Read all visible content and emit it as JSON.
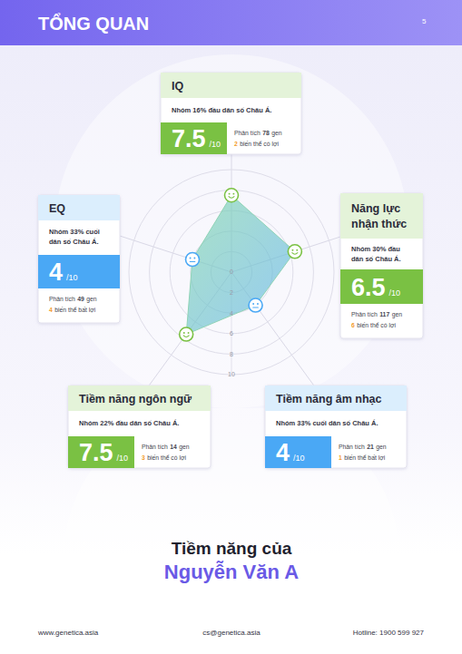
{
  "header": {
    "title": "TỔNG QUAN",
    "page": 5
  },
  "chart_data": {
    "type": "radar",
    "categories": [
      "IQ",
      "Năng lực nhận thức",
      "Tiềm năng âm nhạc",
      "Tiềm năng ngôn ngữ",
      "EQ"
    ],
    "values": [
      7.5,
      6.5,
      4,
      7.5,
      4
    ],
    "colors": [
      "#7ac143",
      "#7ac143",
      "#4aa8f5",
      "#7ac143",
      "#4aa8f5"
    ],
    "ylim": [
      0,
      10
    ],
    "yticks": [
      0,
      2,
      4,
      6,
      8,
      10
    ],
    "grid": true
  },
  "cards": [
    {
      "description": "Nhóm 16% đầu dân số Châu Á.",
      "genes": 78,
      "variants": 2,
      "variant_text": "biến thể có lợi"
    },
    {
      "description": "Nhóm 30% đầu dân số Châu Á.",
      "genes": 117,
      "variants": 6,
      "variant_text": "biến thể có lợi"
    },
    {
      "description": "Nhóm 33% cuối dân số Châu Á.",
      "genes": 21,
      "variants": 1,
      "variant_text": "biến thể bất lợi"
    },
    {
      "description": "Nhóm 22% đầu dân số Châu Á.",
      "genes": 14,
      "variants": 3,
      "variant_text": "biến thể có lợi"
    },
    {
      "description": "Nhóm 33% cuối dân số Châu Á.",
      "genes": 49,
      "variants": 4,
      "variant_text": "biến thể bất lợi"
    }
  ],
  "card_labels": {
    "score_suffix": "/10",
    "analysis": "Phân tích",
    "gene_unit": "gen"
  },
  "profile": {
    "title": "Tiềm năng của",
    "name": "Nguyễn Văn A"
  },
  "footer": {
    "website": "www.genetica.asia",
    "email": "cs@genetica.asia",
    "hotline": "Hotline: 1900 599 927"
  }
}
